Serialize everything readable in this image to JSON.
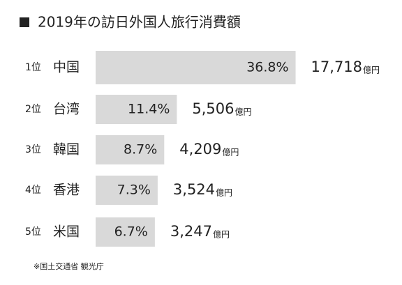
{
  "chart_data": {
    "type": "bar",
    "orientation": "horizontal",
    "title": "2019年の訪日外国人旅行消費額",
    "ranks": [
      "1位",
      "2位",
      "3位",
      "4位",
      "5位"
    ],
    "categories": [
      "中国",
      "台湾",
      "韓国",
      "香港",
      "米国"
    ],
    "values": [
      36.8,
      11.4,
      8.7,
      7.3,
      6.7
    ],
    "value_labels": [
      "36.8%",
      "11.4%",
      "8.7%",
      "7.3%",
      "6.7%"
    ],
    "amounts": [
      17718,
      5506,
      4209,
      3524,
      3247
    ],
    "amount_labels": [
      "17,718",
      "5,506",
      "4,209",
      "3,524",
      "3,247"
    ],
    "amount_unit": "億円",
    "color": "#d9d9d9",
    "source": "※国土交通省 観光庁"
  }
}
